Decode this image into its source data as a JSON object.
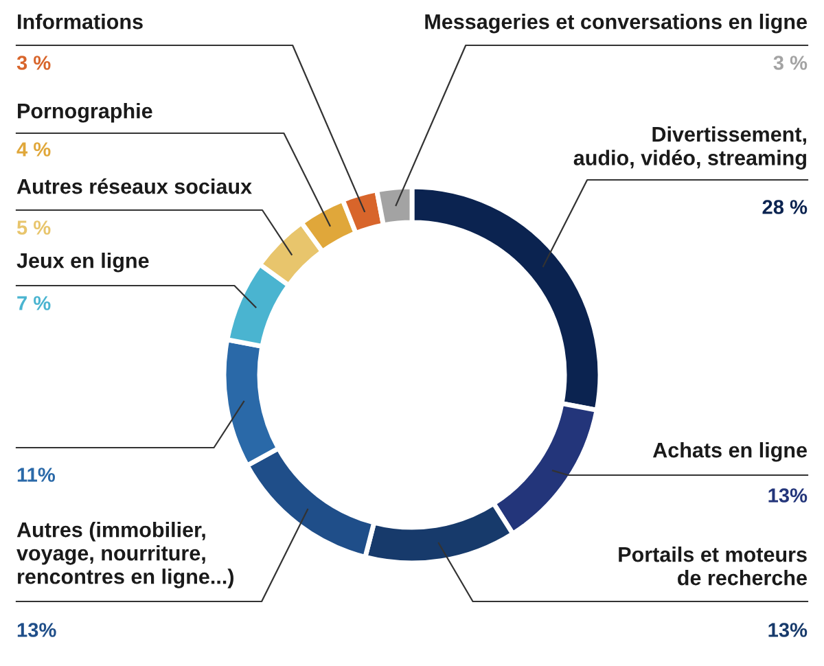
{
  "chart_data": {
    "type": "donut",
    "categories": [
      "Divertissement,\naudio, vidéo, streaming",
      "Achats en ligne",
      "Portails et moteurs\nde recherche",
      "Autres (immobilier,\nvoyage, nourriture,\nrencontres en ligne...)",
      null,
      "Jeux en ligne",
      "Autres réseaux sociaux",
      "Pornographie",
      "Informations",
      "Messageries et conversations en ligne"
    ],
    "values": [
      28,
      13,
      13,
      13,
      11,
      7,
      5,
      4,
      3,
      3
    ],
    "colors": [
      "#0b2350",
      "#23357a",
      "#173a6b",
      "#1f4e89",
      "#2a69a8",
      "#4ab4d0",
      "#e8c56c",
      "#e0a73a",
      "#d8652b",
      "#a3a3a3"
    ],
    "value_labels": [
      "28 %",
      "13%",
      "13%",
      "13%",
      "11%",
      "7 %",
      "5 %",
      "4 %",
      "3 %",
      "3 %"
    ]
  }
}
